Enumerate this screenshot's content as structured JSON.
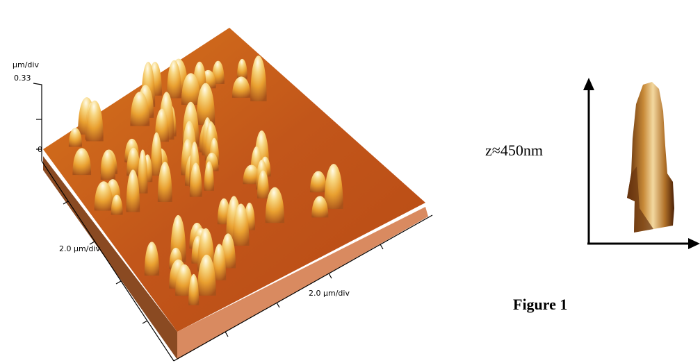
{
  "figure": {
    "surface": {
      "z_unit": "µm/div",
      "z_top_label": "0.33",
      "z_zero_label": "0",
      "left_axis_label": "2.0 µm/div",
      "right_axis_label": "2.0 µm/div"
    },
    "inset": {
      "height_label": "z≈450nm"
    },
    "caption": "Figure 1"
  }
}
